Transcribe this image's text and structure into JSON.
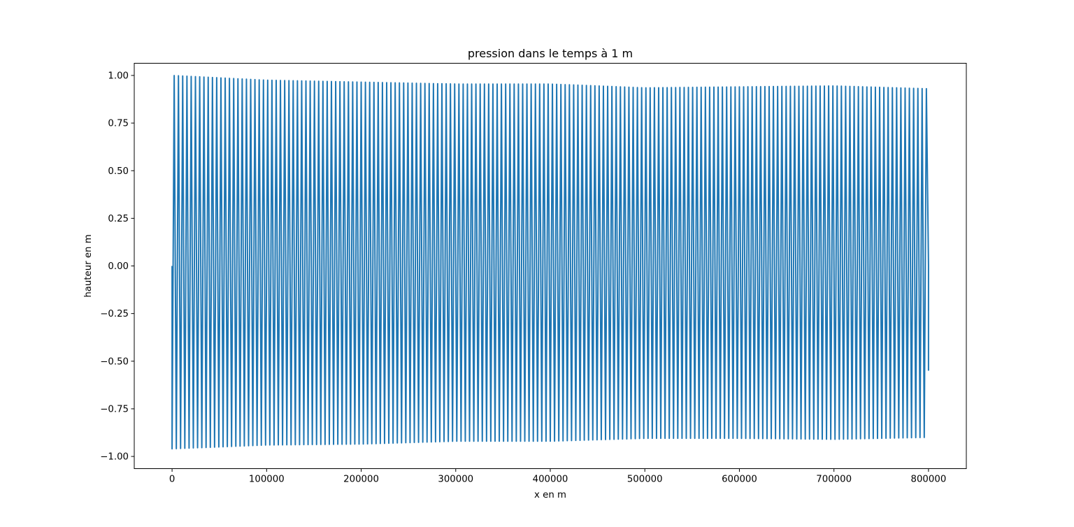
{
  "chart_data": {
    "type": "line",
    "title": "pression dans le temps à 1 m",
    "xlabel": "x en m",
    "ylabel": "hauteur en m",
    "xlim": [
      -40000,
      840000
    ],
    "ylim": [
      -1.064,
      1.064
    ],
    "xticks": [
      0,
      100000,
      200000,
      300000,
      400000,
      500000,
      600000,
      700000,
      800000
    ],
    "xtick_labels": [
      "0",
      "100000",
      "200000",
      "300000",
      "400000",
      "500000",
      "600000",
      "700000",
      "800000"
    ],
    "yticks": [
      1.0,
      0.75,
      0.5,
      0.25,
      0.0,
      -0.25,
      -0.5,
      -0.75,
      -1.0
    ],
    "ytick_labels": [
      "1.00",
      "0.75",
      "0.50",
      "0.25",
      "0.00",
      "−0.25",
      "−0.50",
      "−0.75",
      "−1.00"
    ],
    "grid": false,
    "series": [
      {
        "color": "#1f77b4",
        "x_start": 0,
        "x_end": 800000,
        "cycles": 178,
        "start_value": 0.0,
        "end_value": -0.55,
        "envelope_x": [
          0,
          100000,
          200000,
          300000,
          400000,
          500000,
          600000,
          700000,
          800000
        ],
        "envelope_max": [
          1.0,
          0.975,
          0.965,
          0.955,
          0.955,
          0.935,
          0.94,
          0.945,
          0.93
        ],
        "envelope_min": [
          -0.96,
          -0.94,
          -0.935,
          -0.92,
          -0.92,
          -0.905,
          -0.905,
          -0.91,
          -0.9
        ]
      }
    ]
  }
}
